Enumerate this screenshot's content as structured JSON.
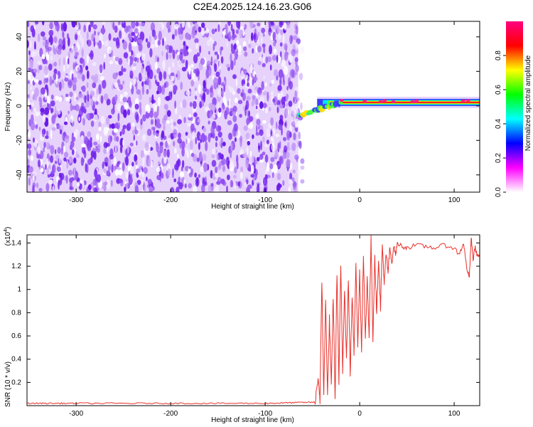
{
  "title": "C2E4.2025.124.16.23.G06",
  "colors": {
    "line": "#e8302a",
    "frame": "#000000"
  },
  "chart_data": [
    {
      "type": "heatmap",
      "xlabel": "Height of straight line (km)",
      "ylabel": "Frequency (Hz)",
      "xlim": [
        -352,
        127
      ],
      "ylim": [
        -50,
        49
      ],
      "xticks": [
        -300,
        -200,
        -100,
        0,
        100
      ],
      "xticklabels": [
        "-300",
        "-200",
        "-100",
        "0",
        "100"
      ],
      "yticks": [
        -40,
        -20,
        0,
        20,
        40
      ],
      "yticklabels": [
        "-40",
        "-20",
        "0",
        "20",
        "40"
      ],
      "noise_region_x": [
        -352,
        -65
      ],
      "transition_x": [
        -65,
        -20
      ],
      "signal_band": {
        "x_start": -45,
        "x_end": 127,
        "center_hz": 2,
        "width_hz": 4
      },
      "colorbar": {
        "label": "Normalized spectral amplitude",
        "range": [
          0,
          1
        ],
        "ticks": [
          0,
          0.2,
          0.4,
          0.6,
          0.8
        ],
        "ticklabels": [
          "0.0",
          "0.2",
          "0.4",
          "0.6",
          "0.8"
        ],
        "colormap": [
          "#ffffff",
          "#ff00ff",
          "#0000ff",
          "#00ffff",
          "#00ff00",
          "#ffff00",
          "#ff0000",
          "#ff0080"
        ]
      },
      "grid": false
    },
    {
      "type": "line",
      "xlabel": "Height of straight line (km)",
      "ylabel": "SNR (10 * v/v)",
      "scale_label": "(x10",
      "scale_exp": "4",
      "scale_close": ")",
      "xlim": [
        -352,
        127
      ],
      "ylim": [
        0,
        1.47
      ],
      "xticks": [
        -300,
        -200,
        -100,
        0,
        100
      ],
      "xticklabels": [
        "-300",
        "-200",
        "-100",
        "0",
        "100"
      ],
      "yticks": [
        0.2,
        0.4,
        0.6,
        0.8,
        1.0,
        1.2,
        1.4
      ],
      "yticklabels": [
        "0.2",
        "0.4",
        "0.6",
        "0.8",
        "1",
        "1.2",
        "1.4"
      ],
      "series": [
        {
          "x": [
            -352,
            -300,
            -200,
            -100,
            -47,
            -44,
            -42,
            -40,
            -38,
            -36,
            -34,
            -32,
            -30,
            -28,
            -26,
            -24,
            -22,
            -20,
            -18,
            -16,
            -14,
            -12,
            -10,
            -8,
            -6,
            -4,
            -2,
            0,
            2,
            4,
            6,
            8,
            10,
            12,
            14,
            16,
            18,
            20,
            22,
            24,
            26,
            28,
            30,
            32,
            34,
            36,
            38,
            40,
            45,
            50,
            60,
            70,
            80,
            90,
            100,
            105,
            110,
            113,
            116,
            118,
            120,
            122,
            124,
            127
          ],
          "y": [
            0.02,
            0.02,
            0.02,
            0.02,
            0.03,
            0.25,
            0.05,
            1.07,
            0.1,
            0.9,
            0.08,
            0.75,
            0.15,
            0.95,
            0.06,
            1.15,
            0.2,
            1.2,
            0.3,
            1.02,
            0.4,
            1.08,
            0.28,
            0.95,
            0.45,
            1.25,
            0.5,
            1.15,
            0.48,
            1.32,
            0.55,
            1.1,
            0.6,
            1.43,
            0.58,
            1.3,
            0.78,
            1.28,
            0.85,
            1.38,
            1.05,
            1.3,
            1.15,
            1.35,
            1.22,
            1.38,
            1.3,
            1.4,
            1.37,
            1.36,
            1.38,
            1.37,
            1.36,
            1.38,
            1.36,
            1.3,
            1.4,
            1.2,
            1.1,
            1.45,
            1.25,
            1.37,
            1.3,
            1.28
          ]
        }
      ],
      "grid": false
    }
  ]
}
